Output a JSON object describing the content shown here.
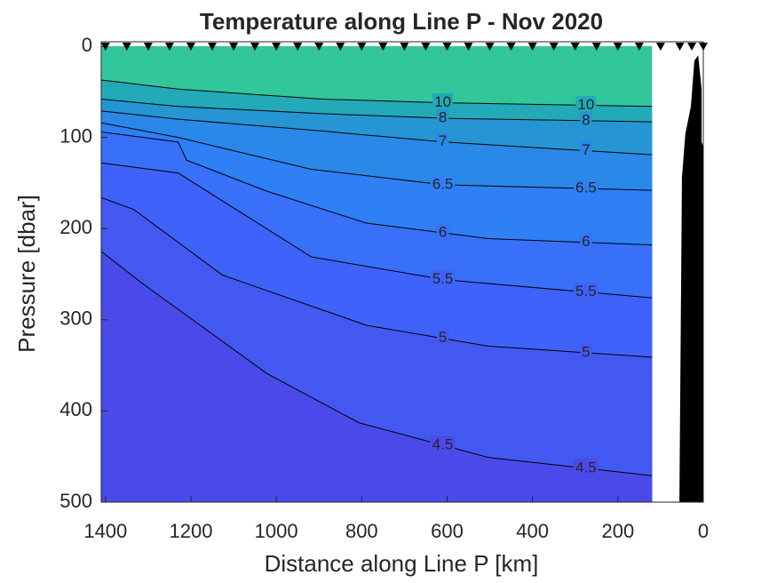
{
  "chart_data": {
    "type": "contour",
    "title": "Temperature along Line P - Nov 2020",
    "x_label": "Distance along Line P [km]",
    "y_label": "Pressure [dbar]",
    "xlim": [
      1410,
      0
    ],
    "ylim": [
      0,
      500
    ],
    "xticks": [
      1400,
      1200,
      1000,
      800,
      600,
      400,
      200,
      0
    ],
    "yticks": [
      0,
      100,
      200,
      300,
      400,
      500
    ],
    "color": "#31c79b",
    "contours": [
      {
        "level": 10,
        "color": "#22aab8",
        "x": [
          1410,
          1230,
          893,
          607,
          120
        ],
        "values": [
          37,
          47,
          58,
          62,
          66
        ]
      },
      {
        "level": 8,
        "color": "#2596d3",
        "x": [
          1410,
          1230,
          893,
          607,
          120
        ],
        "values": [
          58,
          66,
          74,
          79,
          83
        ]
      },
      {
        "level": 7,
        "color": "#2a88e8",
        "x": [
          1410,
          1230,
          893,
          607,
          120
        ],
        "values": [
          71,
          80,
          93,
          105,
          119
        ]
      },
      {
        "level": 6.5,
        "color": "#2f7ff5",
        "x": [
          1410,
          1230,
          918,
          607,
          120
        ],
        "values": [
          84,
          100,
          135,
          152,
          158
        ]
      },
      {
        "level": 6,
        "color": "#3870fa",
        "x": [
          1410,
          1230,
          1210,
          1022,
          789,
          503,
          120
        ],
        "values": [
          94,
          105,
          125,
          159,
          194,
          211,
          218
        ]
      },
      {
        "level": 5.5,
        "color": "#3f62fa",
        "x": [
          1410,
          1230,
          918,
          607,
          120
        ],
        "values": [
          128,
          139,
          231,
          256,
          276
        ]
      },
      {
        "level": 5,
        "color": "#4358f0",
        "x": [
          1410,
          1334,
          1126,
          789,
          503,
          120
        ],
        "values": [
          166,
          179,
          251,
          306,
          329,
          341
        ]
      },
      {
        "level": 4.5,
        "color": "#4a4aeb",
        "x": [
          1410,
          1317,
          1022,
          806,
          503,
          120
        ],
        "values": [
          225,
          259,
          359,
          413,
          451,
          471
        ]
      }
    ],
    "bathymetry": {
      "x": [
        56,
        50,
        42,
        29,
        21,
        12,
        4,
        4,
        0,
        0
      ],
      "values": [
        500,
        144,
        96,
        66,
        16,
        10,
        47,
        105,
        110,
        500
      ]
    },
    "stations": [
      1400,
      1350,
      1300,
      1250,
      1200,
      1150,
      1100,
      1050,
      1000,
      950,
      900,
      850,
      800,
      750,
      700,
      650,
      600,
      550,
      500,
      450,
      400,
      350,
      300,
      250,
      200,
      150,
      100,
      55,
      27,
      0
    ]
  }
}
